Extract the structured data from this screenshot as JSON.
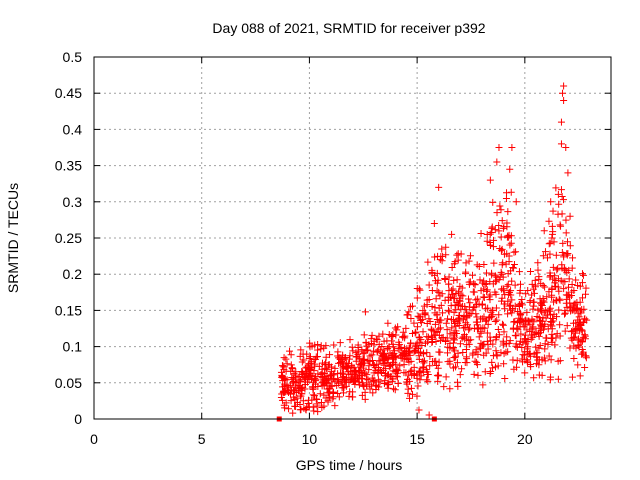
{
  "chart_data": {
    "type": "scatter",
    "title": "Day 088 of 2021, SRMTID for receiver p392",
    "xlabel": "GPS time / hours",
    "ylabel": "SRMTID / TECUs",
    "xlim": [
      0,
      24
    ],
    "ylim": [
      0,
      0.5
    ],
    "xticks": [
      0,
      5,
      10,
      15,
      20
    ],
    "yticks": [
      0,
      0.05,
      0.1,
      0.15,
      0.2,
      0.25,
      0.3,
      0.35,
      0.4,
      0.45,
      0.5
    ],
    "grid": true,
    "marker": "plus",
    "series": [
      {
        "name": "SRMTID",
        "color": "#ff0000",
        "x_start": 8.7,
        "x_end": 22.9,
        "envelope": [
          {
            "x": 8.7,
            "lo": 0.02,
            "hi": 0.09,
            "mid": 0.05
          },
          {
            "x": 9.5,
            "lo": 0.02,
            "hi": 0.1,
            "mid": 0.05
          },
          {
            "x": 10.5,
            "lo": 0.02,
            "hi": 0.11,
            "mid": 0.05
          },
          {
            "x": 11.5,
            "lo": 0.03,
            "hi": 0.11,
            "mid": 0.06
          },
          {
            "x": 12.5,
            "lo": 0.03,
            "hi": 0.12,
            "mid": 0.07
          },
          {
            "x": 13.5,
            "lo": 0.04,
            "hi": 0.12,
            "mid": 0.08
          },
          {
            "x": 14.5,
            "lo": 0.04,
            "hi": 0.14,
            "mid": 0.08
          },
          {
            "x": 15.2,
            "lo": 0.05,
            "hi": 0.2,
            "mid": 0.1
          },
          {
            "x": 15.8,
            "lo": 0.05,
            "hi": 0.25,
            "mid": 0.12
          },
          {
            "x": 16.5,
            "lo": 0.06,
            "hi": 0.24,
            "mid": 0.14
          },
          {
            "x": 17.5,
            "lo": 0.06,
            "hi": 0.22,
            "mid": 0.13
          },
          {
            "x": 18.5,
            "lo": 0.06,
            "hi": 0.3,
            "mid": 0.15
          },
          {
            "x": 19.3,
            "lo": 0.08,
            "hi": 0.33,
            "mid": 0.18
          },
          {
            "x": 20.0,
            "lo": 0.06,
            "hi": 0.18,
            "mid": 0.11
          },
          {
            "x": 20.8,
            "lo": 0.06,
            "hi": 0.24,
            "mid": 0.14
          },
          {
            "x": 21.6,
            "lo": 0.07,
            "hi": 0.36,
            "mid": 0.19
          },
          {
            "x": 22.3,
            "lo": 0.07,
            "hi": 0.22,
            "mid": 0.13
          },
          {
            "x": 22.9,
            "lo": 0.07,
            "hi": 0.2,
            "mid": 0.12
          }
        ],
        "spikes": [
          {
            "x": 18.8,
            "y": 0.375
          },
          {
            "x": 18.7,
            "y": 0.355
          },
          {
            "x": 19.4,
            "y": 0.375
          },
          {
            "x": 19.3,
            "y": 0.345
          },
          {
            "x": 16.0,
            "y": 0.32
          },
          {
            "x": 15.8,
            "y": 0.27
          },
          {
            "x": 21.8,
            "y": 0.46
          },
          {
            "x": 21.75,
            "y": 0.45
          },
          {
            "x": 21.8,
            "y": 0.44
          },
          {
            "x": 21.7,
            "y": 0.41
          },
          {
            "x": 21.7,
            "y": 0.38
          },
          {
            "x": 21.9,
            "y": 0.375
          },
          {
            "x": 22.0,
            "y": 0.34
          },
          {
            "x": 22.1,
            "y": 0.28
          },
          {
            "x": 12.6,
            "y": 0.148
          },
          {
            "x": 19.6,
            "y": 0.3
          },
          {
            "x": 18.4,
            "y": 0.33
          },
          {
            "x": 21.2,
            "y": 0.3
          },
          {
            "x": 16.6,
            "y": 0.255
          },
          {
            "x": 20.9,
            "y": 0.26
          }
        ]
      },
      {
        "name": "gaps",
        "color": "#ff0000",
        "marker": "square",
        "points": [
          {
            "x": 8.6,
            "y": 0.0
          },
          {
            "x": 15.8,
            "y": 0.0
          }
        ]
      }
    ]
  }
}
